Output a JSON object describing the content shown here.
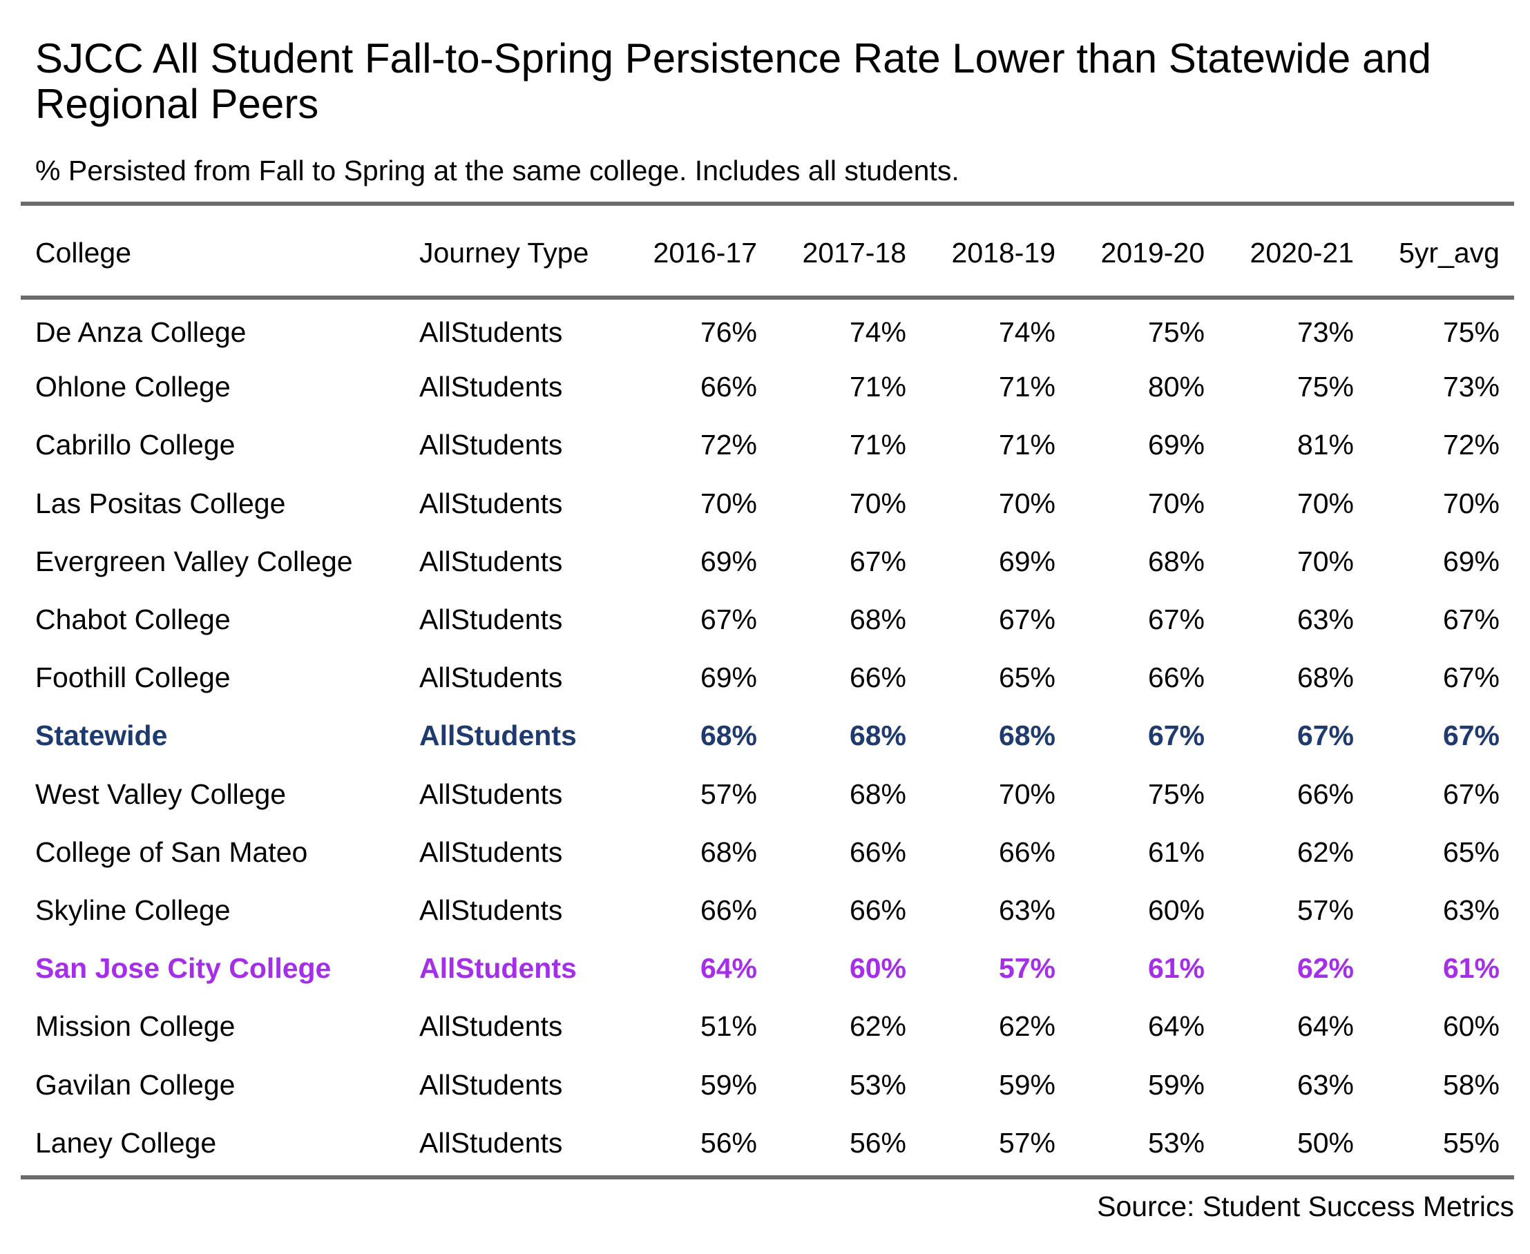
{
  "chart_data": {
    "type": "table",
    "title": "SJCC All Student Fall-to-Spring Persistence Rate Lower than Statewide and Regional Peers",
    "subtitle": "% Persisted from Fall to Spring at the same college. Includes all students.",
    "source": "Source: Student Success Metrics",
    "columns": [
      "College",
      "Journey Type",
      "2016-17",
      "2017-18",
      "2018-19",
      "2019-20",
      "2020-21",
      "5yr_avg"
    ],
    "highlight_colors": {
      "statewide": "#1f3a6e",
      "san_jose_city_college": "#a52ee8"
    },
    "rows": [
      {
        "college": "De Anza College",
        "journey": "AllStudents",
        "values": [
          "76%",
          "74%",
          "74%",
          "75%",
          "73%",
          "75%"
        ],
        "highlight": ""
      },
      {
        "college": "Ohlone College",
        "journey": "AllStudents",
        "values": [
          "66%",
          "71%",
          "71%",
          "80%",
          "75%",
          "73%"
        ],
        "highlight": ""
      },
      {
        "college": "Cabrillo College",
        "journey": "AllStudents",
        "values": [
          "72%",
          "71%",
          "71%",
          "69%",
          "81%",
          "72%"
        ],
        "highlight": ""
      },
      {
        "college": "Las Positas College",
        "journey": "AllStudents",
        "values": [
          "70%",
          "70%",
          "70%",
          "70%",
          "70%",
          "70%"
        ],
        "highlight": ""
      },
      {
        "college": "Evergreen Valley College",
        "journey": "AllStudents",
        "values": [
          "69%",
          "67%",
          "69%",
          "68%",
          "70%",
          "69%"
        ],
        "highlight": ""
      },
      {
        "college": "Chabot College",
        "journey": "AllStudents",
        "values": [
          "67%",
          "68%",
          "67%",
          "67%",
          "63%",
          "67%"
        ],
        "highlight": ""
      },
      {
        "college": "Foothill College",
        "journey": "AllStudents",
        "values": [
          "69%",
          "66%",
          "65%",
          "66%",
          "68%",
          "67%"
        ],
        "highlight": ""
      },
      {
        "college": "Statewide",
        "journey": "AllStudents",
        "values": [
          "68%",
          "68%",
          "68%",
          "67%",
          "67%",
          "67%"
        ],
        "highlight": "state"
      },
      {
        "college": "West Valley College",
        "journey": "AllStudents",
        "values": [
          "57%",
          "68%",
          "70%",
          "75%",
          "66%",
          "67%"
        ],
        "highlight": ""
      },
      {
        "college": "College of San Mateo",
        "journey": "AllStudents",
        "values": [
          "68%",
          "66%",
          "66%",
          "61%",
          "62%",
          "65%"
        ],
        "highlight": ""
      },
      {
        "college": "Skyline College",
        "journey": "AllStudents",
        "values": [
          "66%",
          "66%",
          "63%",
          "60%",
          "57%",
          "63%"
        ],
        "highlight": ""
      },
      {
        "college": "San Jose City College",
        "journey": "AllStudents",
        "values": [
          "64%",
          "60%",
          "57%",
          "61%",
          "62%",
          "61%"
        ],
        "highlight": "sjcc"
      },
      {
        "college": "Mission College",
        "journey": "AllStudents",
        "values": [
          "51%",
          "62%",
          "62%",
          "64%",
          "64%",
          "60%"
        ],
        "highlight": ""
      },
      {
        "college": "Gavilan College",
        "journey": "AllStudents",
        "values": [
          "59%",
          "53%",
          "59%",
          "59%",
          "63%",
          "58%"
        ],
        "highlight": ""
      },
      {
        "college": "Laney College",
        "journey": "AllStudents",
        "values": [
          "56%",
          "56%",
          "57%",
          "53%",
          "50%",
          "55%"
        ],
        "highlight": ""
      }
    ]
  }
}
